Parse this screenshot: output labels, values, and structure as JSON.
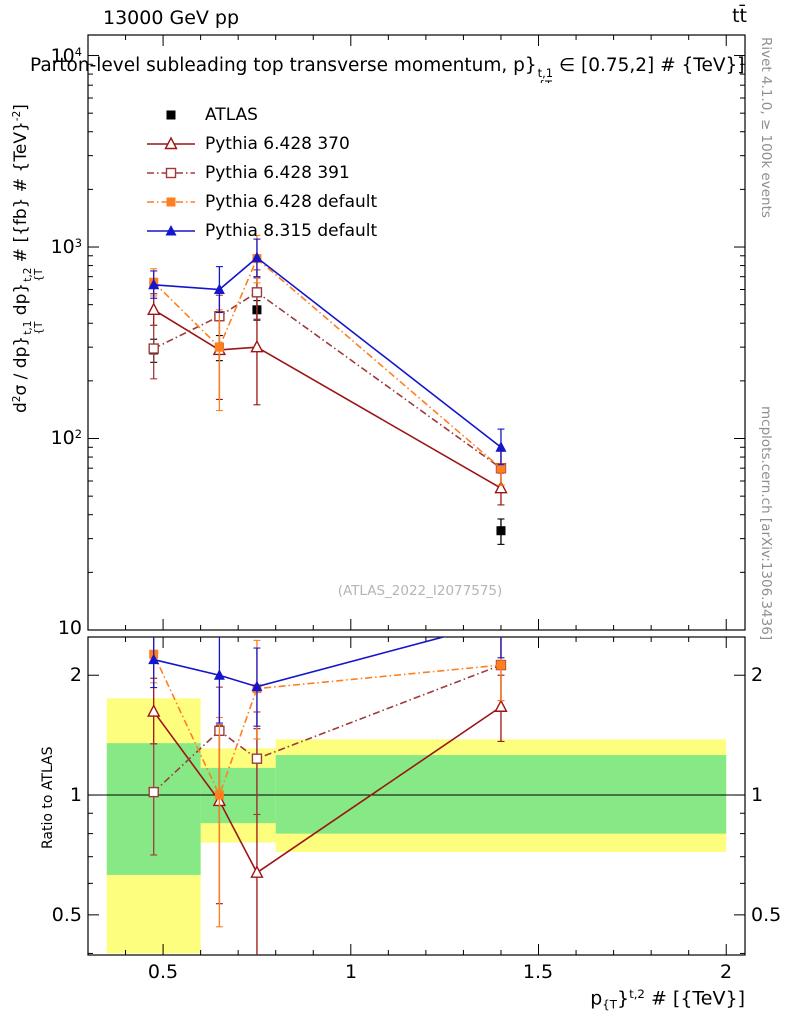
{
  "header": {
    "left": "13000 GeV pp",
    "right": "tt̄"
  },
  "title": {
    "prefix": "Parton-level subleading top transverse momentum, p}",
    "sup": "t,1",
    "sub": "{T",
    "suffix": " ∈ [0.75,2] # {TeV}]"
  },
  "ylabel": {
    "p1": "d",
    "e1": "2",
    "p2": "σ / dp}",
    "sup1": "t,1",
    "sub1": "{T",
    "p3": " dp}",
    "sup2": "t,2",
    "sub2": "{T",
    "p4": " # [{fb} # {TeV}",
    "e2": "-2",
    "p5": "]"
  },
  "xlabel": {
    "p1": "p",
    "sub": "{T",
    "p2": "}",
    "sup": "t,2",
    "p3": " # [{TeV}]"
  },
  "ratio_ylabel": "Ratio to ATLAS",
  "watermark": "(ATLAS_2022_I2077575)",
  "side_notes": {
    "top": "Rivet 4.1.0, ≥ 100k events",
    "bottom": "mcplots.cern.ch [arXiv:1306.3436]"
  },
  "axes": {
    "main_y_ticks": [
      {
        "base": "10",
        "exp": "4"
      },
      {
        "base": "10",
        "exp": "3"
      },
      {
        "base": "10",
        "exp": "2"
      },
      {
        "base": "10",
        "exp": ""
      }
    ],
    "x_ticks": [
      "0.5",
      "1",
      "1.5",
      "2"
    ],
    "ratio_y_ticks": [
      "2",
      "1",
      "0.5"
    ]
  },
  "chart_data": {
    "type": "line",
    "title": "Parton-level subleading top transverse momentum, p_T^{t,1} in [0.75,2] TeV",
    "xlabel": "p_T^{t,2} [TeV]",
    "ylabel": "d2sigma / dp_T^{t,1} dp_T^{t,2} [fb/TeV^2]",
    "legend_position": "top-left",
    "x_range": [
      0.3,
      2.05
    ],
    "x_major_ticks": [
      0.5,
      1,
      1.5,
      2
    ],
    "x_minor_step": 0.1,
    "main_panel": {
      "y_scale": "log",
      "y_range": [
        10,
        12800
      ],
      "y_major_ticks": [
        10,
        100,
        1000,
        10000
      ]
    },
    "ratio_panel": {
      "y_scale": "log",
      "y_range": [
        0.3964,
        2.495
      ],
      "y_major_ticks": [
        0.5,
        1,
        2
      ],
      "y_minor_ticks": [
        0.4,
        0.6,
        0.7,
        0.8,
        0.9
      ],
      "reference_value": 1,
      "band_colors": {
        "yellow": "#fdfd7e",
        "green": "#86e986"
      },
      "bands": [
        {
          "x0": 0.35,
          "x1": 0.6,
          "yellow": [
            0.4,
            1.75
          ],
          "green": [
            0.63,
            1.35
          ]
        },
        {
          "x0": 0.6,
          "x1": 0.8,
          "yellow": [
            0.76,
            1.31
          ],
          "green": [
            0.85,
            1.17
          ]
        },
        {
          "x0": 0.8,
          "x1": 2.0,
          "yellow": [
            0.72,
            1.38
          ],
          "green": [
            0.8,
            1.26
          ]
        }
      ]
    },
    "series": [
      {
        "label": "ATLAS",
        "color": "#000000",
        "marker": "square-filled",
        "line": "none",
        "is_reference": true,
        "points": [
          {
            "x": 0.475,
            "y": 290,
            "lo": 250,
            "hi": 330
          },
          {
            "x": 0.65,
            "y": 300,
            "lo": 255,
            "hi": 345
          },
          {
            "x": 0.75,
            "y": 470,
            "lo": 415,
            "hi": 525
          },
          {
            "x": 1.4,
            "y": 33,
            "lo": 28,
            "hi": 38
          }
        ]
      },
      {
        "label": "Pythia 6.428 370",
        "color": "#9d1414",
        "marker": "triangle-open",
        "line": "solid",
        "points": [
          {
            "x": 0.475,
            "y": 470,
            "lo": 390,
            "hi": 570
          },
          {
            "x": 0.65,
            "y": 290,
            "lo": 160,
            "hi": 450
          },
          {
            "x": 0.75,
            "y": 300,
            "lo": 150,
            "hi": 690
          },
          {
            "x": 1.4,
            "y": 55,
            "lo": 45,
            "hi": 66
          }
        ]
      },
      {
        "label": "Pythia 6.428 391",
        "color": "#9d3b3b",
        "marker": "square-open",
        "line": "dashdot",
        "points": [
          {
            "x": 0.475,
            "y": 295,
            "lo": 205,
            "hi": 390
          },
          {
            "x": 0.65,
            "y": 435,
            "lo": 300,
            "hi": 560
          },
          {
            "x": 0.75,
            "y": 580,
            "lo": 420,
            "hi": 760
          },
          {
            "x": 1.4,
            "y": 70,
            "lo": 57,
            "hi": 86
          }
        ]
      },
      {
        "label": "Pythia 6.428 default",
        "color": "#ff7f1e",
        "marker": "square-filled",
        "line": "dashdot",
        "points": [
          {
            "x": 0.475,
            "y": 655,
            "lo": 555,
            "hi": 770
          },
          {
            "x": 0.65,
            "y": 300,
            "lo": 140,
            "hi": 470
          },
          {
            "x": 0.75,
            "y": 870,
            "lo": 650,
            "hi": 1150
          },
          {
            "x": 1.4,
            "y": 70,
            "lo": 57,
            "hi": 86
          }
        ]
      },
      {
        "label": "Pythia 8.315 default",
        "color": "#1515cc",
        "marker": "triangle-filled",
        "line": "solid",
        "points": [
          {
            "x": 0.475,
            "y": 635,
            "lo": 540,
            "hi": 750
          },
          {
            "x": 0.65,
            "y": 600,
            "lo": 455,
            "hi": 790
          },
          {
            "x": 0.75,
            "y": 880,
            "lo": 700,
            "hi": 1100
          },
          {
            "x": 1.4,
            "y": 90,
            "lo": 73,
            "hi": 112
          }
        ]
      }
    ]
  }
}
